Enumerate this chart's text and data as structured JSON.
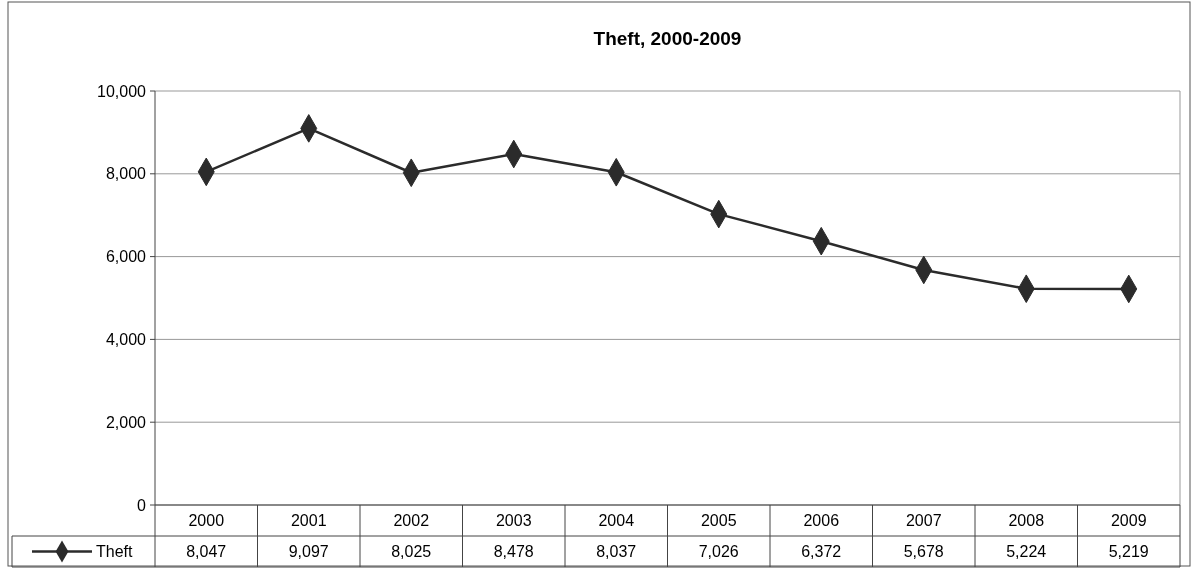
{
  "chart_data": {
    "type": "line",
    "title": "Theft, 2000-2009",
    "categories": [
      "2000",
      "2001",
      "2002",
      "2003",
      "2004",
      "2005",
      "2006",
      "2007",
      "2008",
      "2009"
    ],
    "series": [
      {
        "name": "Theft",
        "color": "#2b2b2b",
        "values": [
          8047,
          9097,
          8025,
          8478,
          8037,
          7026,
          6372,
          5678,
          5224,
          5219
        ],
        "value_labels": [
          "8,047",
          "9,097",
          "8,025",
          "8,478",
          "8,037",
          "7,026",
          "6,372",
          "5,678",
          "5,224",
          "5,219"
        ]
      }
    ],
    "ylim": [
      0,
      10000
    ],
    "yticks": [
      0,
      {
        "value": 2000,
        "label": "2,000"
      },
      {
        "value": 4000,
        "label": "4,000"
      },
      {
        "value": 6000,
        "label": "6,000"
      },
      {
        "value": 8000,
        "label": "8,000"
      },
      {
        "value": 10000,
        "label": "10,000"
      }
    ],
    "grid": "y",
    "legend": "bottom",
    "marker": "diamond",
    "line_style": "solid"
  }
}
